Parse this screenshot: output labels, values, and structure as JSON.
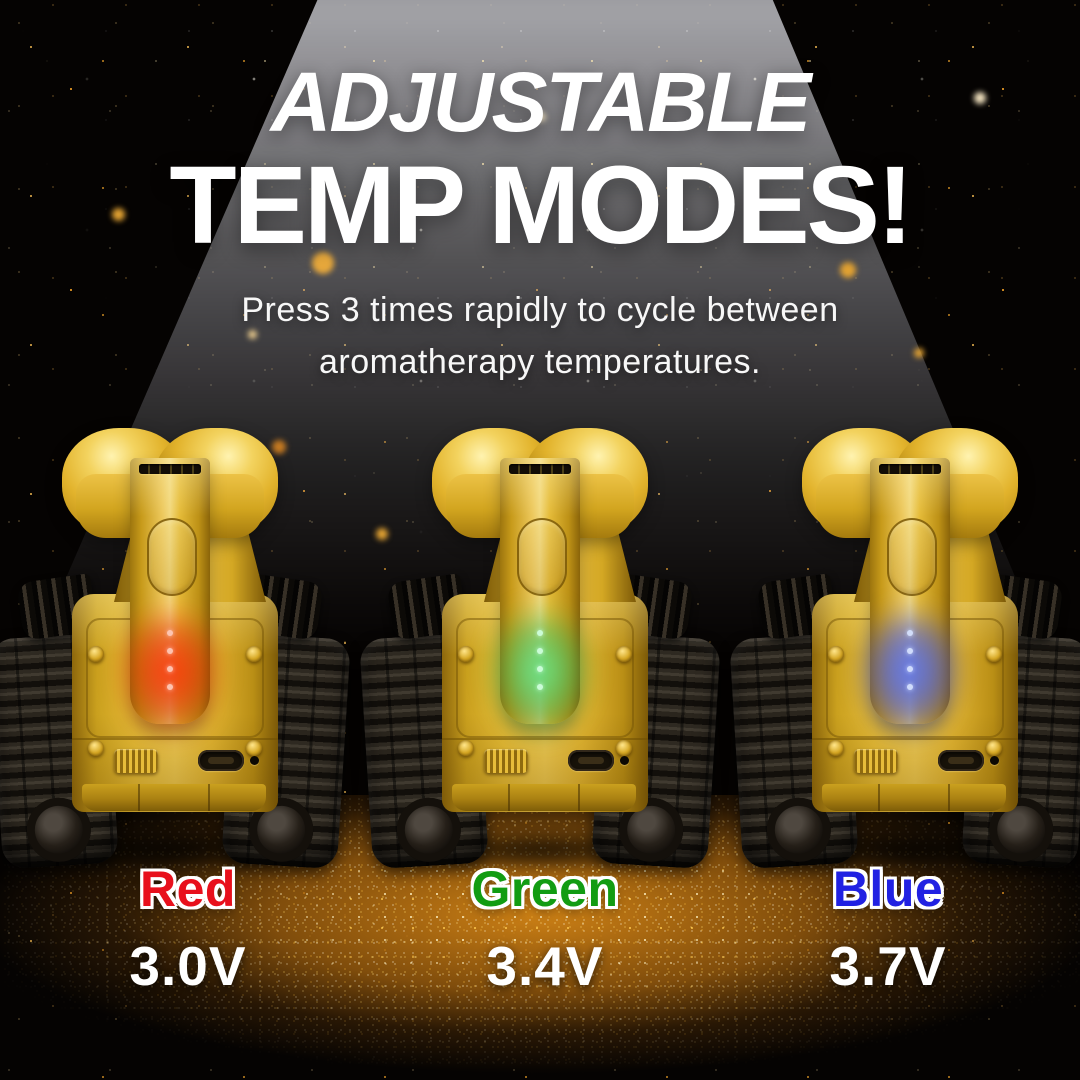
{
  "header": {
    "title_line1": "ADJUSTABLE",
    "title_line2": "TEMP MODES!",
    "subtitle_line1": "Press 3 times rapidly to cycle between",
    "subtitle_line2": "aromatherapy temperatures."
  },
  "modes": [
    {
      "name": "Red",
      "voltage": "3.0V",
      "label_color": "#e8101c",
      "glow_color": "#ff2d05",
      "style": "--label:#e8101c; --glow-a:rgba(255,45,5,0.95); --glow-b:rgba(230,25,0,0.5); --led:#ffc9b8"
    },
    {
      "name": "Green",
      "voltage": "3.4V",
      "label_color": "#129c12",
      "glow_color": "#2fd07c",
      "style": "--label:#129c12; --glow-a:rgba(96,235,145,0.95); --glow-b:rgba(30,185,90,0.5); --led:#cfffdd"
    },
    {
      "name": "Blue",
      "voltage": "3.7V",
      "label_color": "#2121e2",
      "glow_color": "#3c64ff",
      "style": "--label:#2121e2; --glow-a:rgba(85,115,255,0.95); --glow-b:rgba(45,70,235,0.55); --led:#d6e2ff"
    }
  ],
  "colors": {
    "background": "#050302",
    "gold": "#e0ac25",
    "spotlight": "#bdbdc2",
    "floor_glow": "#b06a10",
    "glitter": "#ffd878",
    "text": "#ffffff"
  }
}
